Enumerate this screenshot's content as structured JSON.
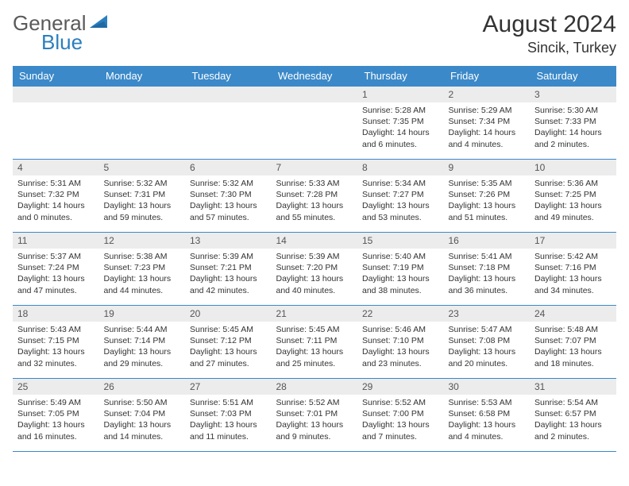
{
  "logo": {
    "part1": "General",
    "part2": "Blue"
  },
  "title": "August 2024",
  "location": "Sincik, Turkey",
  "colors": {
    "header_bg": "#3b89c9",
    "header_text": "#ffffff",
    "daynum_bg": "#ececec",
    "border": "#3b89c9",
    "logo_gray": "#5a5a5a",
    "logo_blue": "#2a7fbf"
  },
  "daynames": [
    "Sunday",
    "Monday",
    "Tuesday",
    "Wednesday",
    "Thursday",
    "Friday",
    "Saturday"
  ],
  "weeks": [
    [
      {
        "n": "",
        "sr": "",
        "ss": "",
        "dl": ""
      },
      {
        "n": "",
        "sr": "",
        "ss": "",
        "dl": ""
      },
      {
        "n": "",
        "sr": "",
        "ss": "",
        "dl": ""
      },
      {
        "n": "",
        "sr": "",
        "ss": "",
        "dl": ""
      },
      {
        "n": "1",
        "sr": "Sunrise: 5:28 AM",
        "ss": "Sunset: 7:35 PM",
        "dl": "Daylight: 14 hours and 6 minutes."
      },
      {
        "n": "2",
        "sr": "Sunrise: 5:29 AM",
        "ss": "Sunset: 7:34 PM",
        "dl": "Daylight: 14 hours and 4 minutes."
      },
      {
        "n": "3",
        "sr": "Sunrise: 5:30 AM",
        "ss": "Sunset: 7:33 PM",
        "dl": "Daylight: 14 hours and 2 minutes."
      }
    ],
    [
      {
        "n": "4",
        "sr": "Sunrise: 5:31 AM",
        "ss": "Sunset: 7:32 PM",
        "dl": "Daylight: 14 hours and 0 minutes."
      },
      {
        "n": "5",
        "sr": "Sunrise: 5:32 AM",
        "ss": "Sunset: 7:31 PM",
        "dl": "Daylight: 13 hours and 59 minutes."
      },
      {
        "n": "6",
        "sr": "Sunrise: 5:32 AM",
        "ss": "Sunset: 7:30 PM",
        "dl": "Daylight: 13 hours and 57 minutes."
      },
      {
        "n": "7",
        "sr": "Sunrise: 5:33 AM",
        "ss": "Sunset: 7:28 PM",
        "dl": "Daylight: 13 hours and 55 minutes."
      },
      {
        "n": "8",
        "sr": "Sunrise: 5:34 AM",
        "ss": "Sunset: 7:27 PM",
        "dl": "Daylight: 13 hours and 53 minutes."
      },
      {
        "n": "9",
        "sr": "Sunrise: 5:35 AM",
        "ss": "Sunset: 7:26 PM",
        "dl": "Daylight: 13 hours and 51 minutes."
      },
      {
        "n": "10",
        "sr": "Sunrise: 5:36 AM",
        "ss": "Sunset: 7:25 PM",
        "dl": "Daylight: 13 hours and 49 minutes."
      }
    ],
    [
      {
        "n": "11",
        "sr": "Sunrise: 5:37 AM",
        "ss": "Sunset: 7:24 PM",
        "dl": "Daylight: 13 hours and 47 minutes."
      },
      {
        "n": "12",
        "sr": "Sunrise: 5:38 AM",
        "ss": "Sunset: 7:23 PM",
        "dl": "Daylight: 13 hours and 44 minutes."
      },
      {
        "n": "13",
        "sr": "Sunrise: 5:39 AM",
        "ss": "Sunset: 7:21 PM",
        "dl": "Daylight: 13 hours and 42 minutes."
      },
      {
        "n": "14",
        "sr": "Sunrise: 5:39 AM",
        "ss": "Sunset: 7:20 PM",
        "dl": "Daylight: 13 hours and 40 minutes."
      },
      {
        "n": "15",
        "sr": "Sunrise: 5:40 AM",
        "ss": "Sunset: 7:19 PM",
        "dl": "Daylight: 13 hours and 38 minutes."
      },
      {
        "n": "16",
        "sr": "Sunrise: 5:41 AM",
        "ss": "Sunset: 7:18 PM",
        "dl": "Daylight: 13 hours and 36 minutes."
      },
      {
        "n": "17",
        "sr": "Sunrise: 5:42 AM",
        "ss": "Sunset: 7:16 PM",
        "dl": "Daylight: 13 hours and 34 minutes."
      }
    ],
    [
      {
        "n": "18",
        "sr": "Sunrise: 5:43 AM",
        "ss": "Sunset: 7:15 PM",
        "dl": "Daylight: 13 hours and 32 minutes."
      },
      {
        "n": "19",
        "sr": "Sunrise: 5:44 AM",
        "ss": "Sunset: 7:14 PM",
        "dl": "Daylight: 13 hours and 29 minutes."
      },
      {
        "n": "20",
        "sr": "Sunrise: 5:45 AM",
        "ss": "Sunset: 7:12 PM",
        "dl": "Daylight: 13 hours and 27 minutes."
      },
      {
        "n": "21",
        "sr": "Sunrise: 5:45 AM",
        "ss": "Sunset: 7:11 PM",
        "dl": "Daylight: 13 hours and 25 minutes."
      },
      {
        "n": "22",
        "sr": "Sunrise: 5:46 AM",
        "ss": "Sunset: 7:10 PM",
        "dl": "Daylight: 13 hours and 23 minutes."
      },
      {
        "n": "23",
        "sr": "Sunrise: 5:47 AM",
        "ss": "Sunset: 7:08 PM",
        "dl": "Daylight: 13 hours and 20 minutes."
      },
      {
        "n": "24",
        "sr": "Sunrise: 5:48 AM",
        "ss": "Sunset: 7:07 PM",
        "dl": "Daylight: 13 hours and 18 minutes."
      }
    ],
    [
      {
        "n": "25",
        "sr": "Sunrise: 5:49 AM",
        "ss": "Sunset: 7:05 PM",
        "dl": "Daylight: 13 hours and 16 minutes."
      },
      {
        "n": "26",
        "sr": "Sunrise: 5:50 AM",
        "ss": "Sunset: 7:04 PM",
        "dl": "Daylight: 13 hours and 14 minutes."
      },
      {
        "n": "27",
        "sr": "Sunrise: 5:51 AM",
        "ss": "Sunset: 7:03 PM",
        "dl": "Daylight: 13 hours and 11 minutes."
      },
      {
        "n": "28",
        "sr": "Sunrise: 5:52 AM",
        "ss": "Sunset: 7:01 PM",
        "dl": "Daylight: 13 hours and 9 minutes."
      },
      {
        "n": "29",
        "sr": "Sunrise: 5:52 AM",
        "ss": "Sunset: 7:00 PM",
        "dl": "Daylight: 13 hours and 7 minutes."
      },
      {
        "n": "30",
        "sr": "Sunrise: 5:53 AM",
        "ss": "Sunset: 6:58 PM",
        "dl": "Daylight: 13 hours and 4 minutes."
      },
      {
        "n": "31",
        "sr": "Sunrise: 5:54 AM",
        "ss": "Sunset: 6:57 PM",
        "dl": "Daylight: 13 hours and 2 minutes."
      }
    ]
  ]
}
